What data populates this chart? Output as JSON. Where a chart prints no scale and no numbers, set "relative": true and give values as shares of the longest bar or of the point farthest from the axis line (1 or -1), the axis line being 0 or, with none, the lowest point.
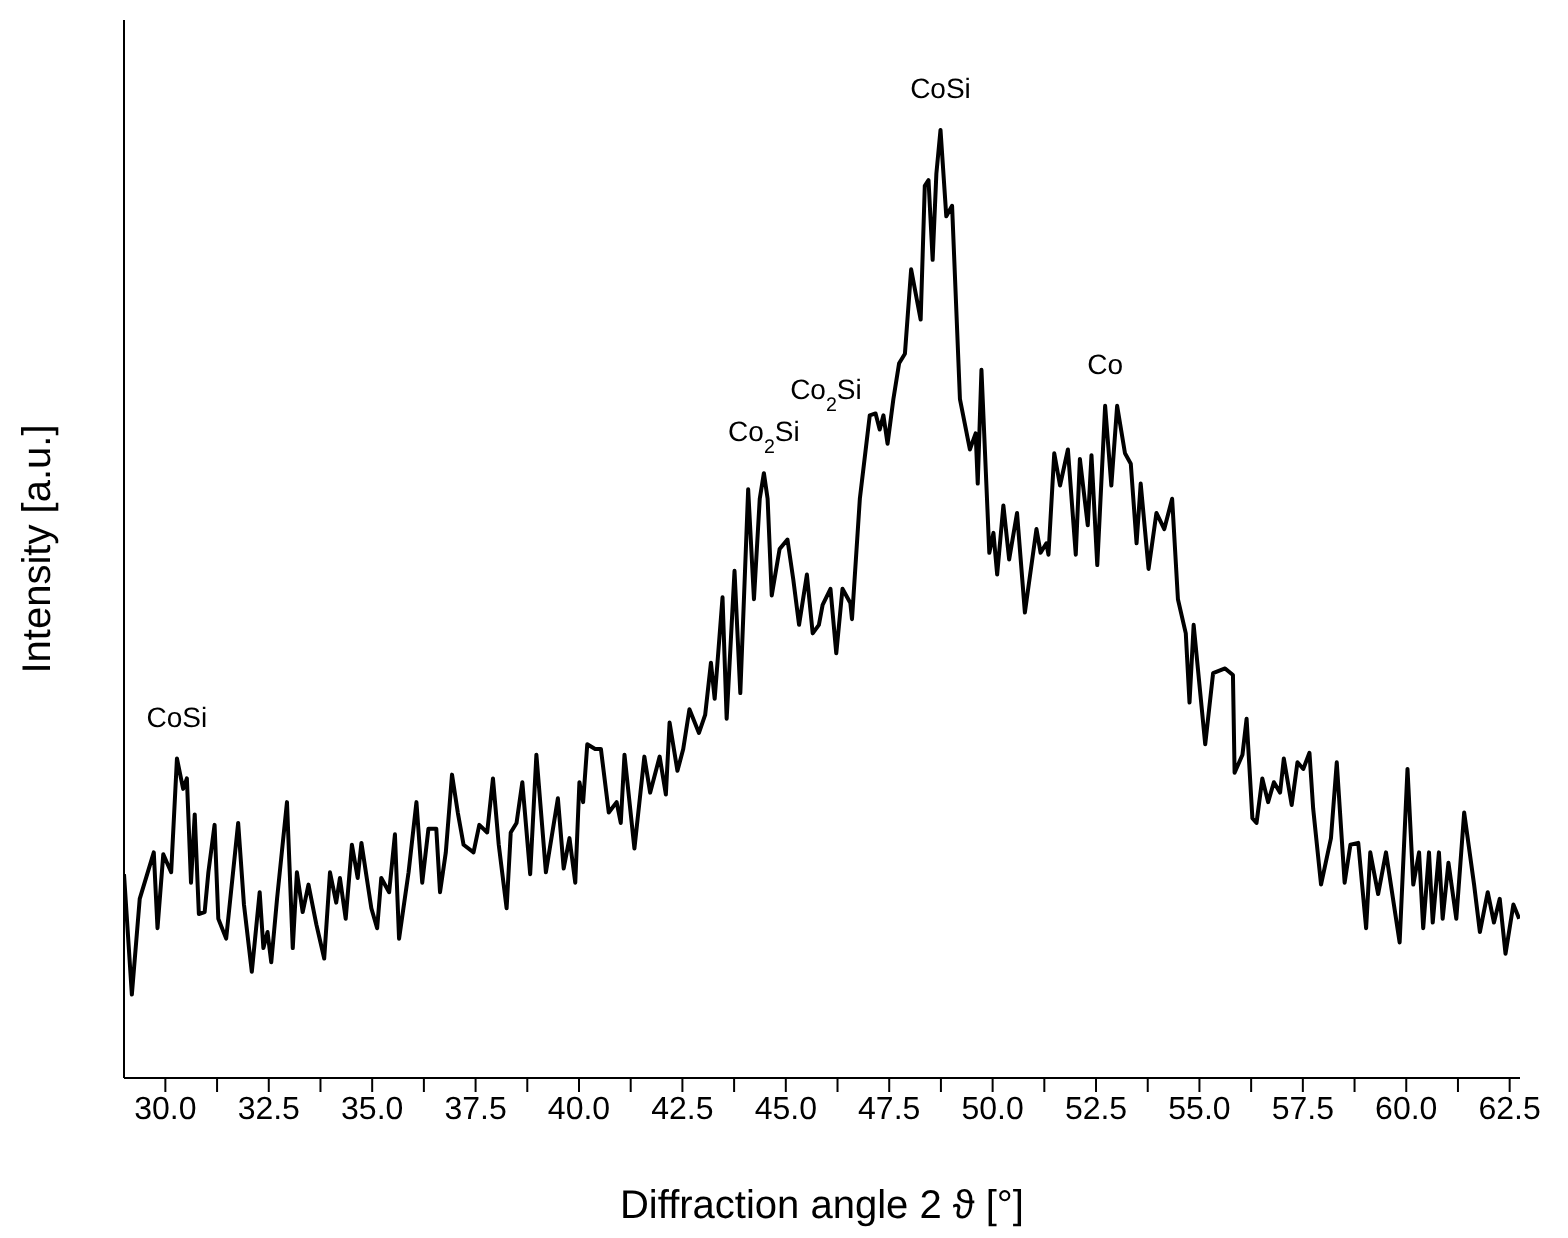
{
  "chart_data": {
    "type": "line",
    "xlabel": "Diffraction angle 2 ϑ [°]",
    "ylabel": "Intensity [a.u.]",
    "relative": true,
    "marker": "none",
    "line_style": "solid",
    "grid": false,
    "legend": false,
    "xlim": [
      29,
      62.75
    ],
    "xticks": [
      {
        "value": 30,
        "label": "30.0"
      },
      {
        "value": 31.25,
        "label": null
      },
      {
        "value": 32.5,
        "label": "32.5"
      },
      {
        "value": 33.75,
        "label": null
      },
      {
        "value": 35,
        "label": "35.0"
      },
      {
        "value": 36.25,
        "label": null
      },
      {
        "value": 37.5,
        "label": "37.5"
      },
      {
        "value": 38.75,
        "label": null
      },
      {
        "value": 40,
        "label": "40.0"
      },
      {
        "value": 41.25,
        "label": null
      },
      {
        "value": 42.5,
        "label": "42.5"
      },
      {
        "value": 43.75,
        "label": null
      },
      {
        "value": 45,
        "label": "45.0"
      },
      {
        "value": 46.25,
        "label": null
      },
      {
        "value": 47.5,
        "label": "47.5"
      },
      {
        "value": 48.75,
        "label": null
      },
      {
        "value": 50,
        "label": "50.0"
      },
      {
        "value": 51.25,
        "label": null
      },
      {
        "value": 52.5,
        "label": "52.5"
      },
      {
        "value": 53.75,
        "label": null
      },
      {
        "value": 55,
        "label": "55.0"
      },
      {
        "value": 56.25,
        "label": null
      },
      {
        "value": 57.5,
        "label": "57.5"
      },
      {
        "value": 58.75,
        "label": null
      },
      {
        "value": 60,
        "label": "60.0"
      },
      {
        "value": 61.25,
        "label": null
      },
      {
        "value": 62.5,
        "label": "62.5"
      }
    ],
    "annotations": [
      {
        "text": "CoSi",
        "x": 30.28,
        "y": 0.337
      },
      {
        "text": "Co$_{2}$Si",
        "x": 44.47,
        "y": 0.638
      },
      {
        "text": "Co$_{2}$Si",
        "x": 47.03,
        "y": 0.699
      },
      {
        "text": "CoSi",
        "x": 48.74,
        "y": 1.0
      },
      {
        "text": "Co",
        "x": 52.72,
        "y": 0.709
      }
    ],
    "series": [
      {
        "color": "#000000",
        "x": [
          29.0,
          29.19,
          29.38,
          29.72,
          29.81,
          29.95,
          30.14,
          30.28,
          30.43,
          30.52,
          30.62,
          30.71,
          30.81,
          30.95,
          31.04,
          31.19,
          31.28,
          31.47,
          31.76,
          31.9,
          32.09,
          32.28,
          32.37,
          32.47,
          32.56,
          32.7,
          32.94,
          33.08,
          33.18,
          33.32,
          33.46,
          33.65,
          33.84,
          33.98,
          34.13,
          34.22,
          34.36,
          34.51,
          34.65,
          34.74,
          34.98,
          35.12,
          35.22,
          35.41,
          35.55,
          35.65,
          35.88,
          36.07,
          36.21,
          36.36,
          36.55,
          36.64,
          36.78,
          36.93,
          37.07,
          37.21,
          37.45,
          37.59,
          37.78,
          37.92,
          38.06,
          38.25,
          38.35,
          38.49,
          38.63,
          38.82,
          38.97,
          39.2,
          39.49,
          39.63,
          39.77,
          39.91,
          40.01,
          40.1,
          40.2,
          40.39,
          40.53,
          40.72,
          40.91,
          41.01,
          41.1,
          41.34,
          41.58,
          41.72,
          41.95,
          42.1,
          42.19,
          42.38,
          42.52,
          42.67,
          42.9,
          43.05,
          43.19,
          43.28,
          43.47,
          43.57,
          43.76,
          43.9,
          44.09,
          44.23,
          44.37,
          44.47,
          44.56,
          44.66,
          44.85,
          45.04,
          45.18,
          45.32,
          45.51,
          45.65,
          45.8,
          45.89,
          46.08,
          46.22,
          46.37,
          46.56,
          46.6,
          46.79,
          47.03,
          47.17,
          47.27,
          47.36,
          47.46,
          47.6,
          47.74,
          47.88,
          48.03,
          48.26,
          48.36,
          48.45,
          48.55,
          48.64,
          48.74,
          48.88,
          49.02,
          49.21,
          49.45,
          49.59,
          49.64,
          49.73,
          49.92,
          50.02,
          50.11,
          50.26,
          50.4,
          50.59,
          50.78,
          51.06,
          51.16,
          51.3,
          51.35,
          51.49,
          51.63,
          51.82,
          52.01,
          52.11,
          52.3,
          52.39,
          52.53,
          52.72,
          52.87,
          53.01,
          53.2,
          53.34,
          53.48,
          53.58,
          53.77,
          53.96,
          54.15,
          54.34,
          54.48,
          54.67,
          54.76,
          54.86,
          55.14,
          55.33,
          55.62,
          55.81,
          55.85,
          56.04,
          56.14,
          56.28,
          56.38,
          56.52,
          56.66,
          56.8,
          56.95,
          57.04,
          57.23,
          57.37,
          57.51,
          57.66,
          57.75,
          57.94,
          58.18,
          58.32,
          58.51,
          58.65,
          58.84,
          59.03,
          59.13,
          59.32,
          59.51,
          59.84,
          60.03,
          60.17,
          60.31,
          60.41,
          60.55,
          60.64,
          60.79,
          60.88,
          61.02,
          61.21,
          61.4,
          61.64,
          61.78,
          61.97,
          62.12,
          62.26,
          62.4,
          62.59,
          62.73
        ],
        "values": [
          0.215,
          0.088,
          0.189,
          0.238,
          0.158,
          0.236,
          0.217,
          0.337,
          0.305,
          0.316,
          0.206,
          0.278,
          0.173,
          0.175,
          0.217,
          0.267,
          0.168,
          0.147,
          0.269,
          0.183,
          0.112,
          0.196,
          0.137,
          0.154,
          0.122,
          0.189,
          0.291,
          0.137,
          0.217,
          0.175,
          0.204,
          0.162,
          0.126,
          0.217,
          0.185,
          0.211,
          0.168,
          0.246,
          0.211,
          0.248,
          0.179,
          0.158,
          0.211,
          0.196,
          0.257,
          0.147,
          0.217,
          0.291,
          0.206,
          0.263,
          0.263,
          0.196,
          0.238,
          0.32,
          0.28,
          0.246,
          0.238,
          0.267,
          0.259,
          0.316,
          0.246,
          0.179,
          0.259,
          0.269,
          0.312,
          0.215,
          0.341,
          0.217,
          0.295,
          0.221,
          0.253,
          0.206,
          0.312,
          0.291,
          0.352,
          0.347,
          0.347,
          0.28,
          0.291,
          0.269,
          0.341,
          0.242,
          0.339,
          0.301,
          0.339,
          0.299,
          0.375,
          0.324,
          0.347,
          0.389,
          0.364,
          0.383,
          0.438,
          0.4,
          0.507,
          0.379,
          0.535,
          0.406,
          0.621,
          0.505,
          0.611,
          0.638,
          0.611,
          0.509,
          0.558,
          0.568,
          0.526,
          0.478,
          0.531,
          0.469,
          0.478,
          0.499,
          0.516,
          0.448,
          0.516,
          0.501,
          0.484,
          0.611,
          0.699,
          0.701,
          0.684,
          0.699,
          0.669,
          0.716,
          0.754,
          0.764,
          0.853,
          0.8,
          0.941,
          0.947,
          0.863,
          0.954,
          1.0,
          0.909,
          0.92,
          0.716,
          0.663,
          0.68,
          0.627,
          0.747,
          0.554,
          0.575,
          0.531,
          0.604,
          0.547,
          0.596,
          0.491,
          0.579,
          0.554,
          0.564,
          0.552,
          0.659,
          0.625,
          0.663,
          0.552,
          0.653,
          0.583,
          0.657,
          0.541,
          0.709,
          0.625,
          0.709,
          0.659,
          0.648,
          0.564,
          0.627,
          0.537,
          0.596,
          0.579,
          0.611,
          0.505,
          0.469,
          0.396,
          0.478,
          0.352,
          0.427,
          0.432,
          0.425,
          0.322,
          0.341,
          0.379,
          0.274,
          0.269,
          0.316,
          0.291,
          0.312,
          0.301,
          0.337,
          0.288,
          0.333,
          0.326,
          0.343,
          0.284,
          0.204,
          0.253,
          0.333,
          0.206,
          0.246,
          0.248,
          0.158,
          0.238,
          0.194,
          0.238,
          0.143,
          0.326,
          0.204,
          0.238,
          0.158,
          0.238,
          0.164,
          0.238,
          0.168,
          0.227,
          0.168,
          0.28,
          0.204,
          0.154,
          0.196,
          0.164,
          0.189,
          0.131,
          0.183,
          0.168
        ]
      }
    ]
  }
}
